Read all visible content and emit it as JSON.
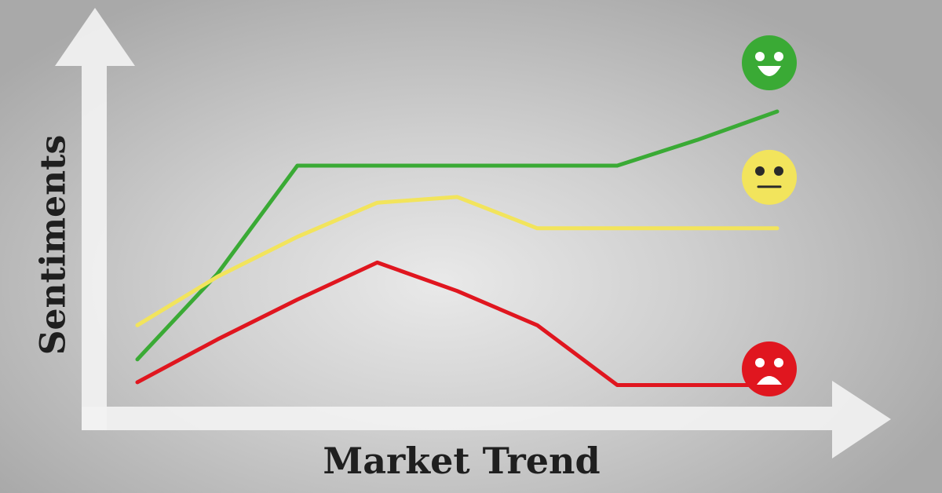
{
  "chart_data": {
    "type": "line",
    "title": "",
    "xlabel": "Market Trend",
    "ylabel": "Sentiments",
    "x": [
      0,
      1,
      2,
      3,
      4,
      5,
      6,
      7,
      8
    ],
    "xlim": [
      0,
      8
    ],
    "ylim": [
      0,
      10
    ],
    "grid": false,
    "legend": "right",
    "series": [
      {
        "mood": "happy",
        "icon": "happy-face-icon",
        "color": "#3aaa35",
        "values": [
          1.3,
          4.3,
          8.1,
          8.1,
          8.1,
          8.1,
          8.1,
          9.0,
          10.0
        ]
      },
      {
        "mood": "neutral",
        "icon": "neutral-face-icon",
        "color": "#f2e45c",
        "values": [
          2.5,
          4.2,
          5.6,
          6.8,
          7.0,
          5.9,
          5.9,
          5.9,
          5.9
        ]
      },
      {
        "mood": "sad",
        "icon": "sad-face-icon",
        "color": "#e0161f",
        "values": [
          0.5,
          2.0,
          3.4,
          4.7,
          3.7,
          2.5,
          0.4,
          0.4,
          0.4
        ]
      }
    ]
  }
}
